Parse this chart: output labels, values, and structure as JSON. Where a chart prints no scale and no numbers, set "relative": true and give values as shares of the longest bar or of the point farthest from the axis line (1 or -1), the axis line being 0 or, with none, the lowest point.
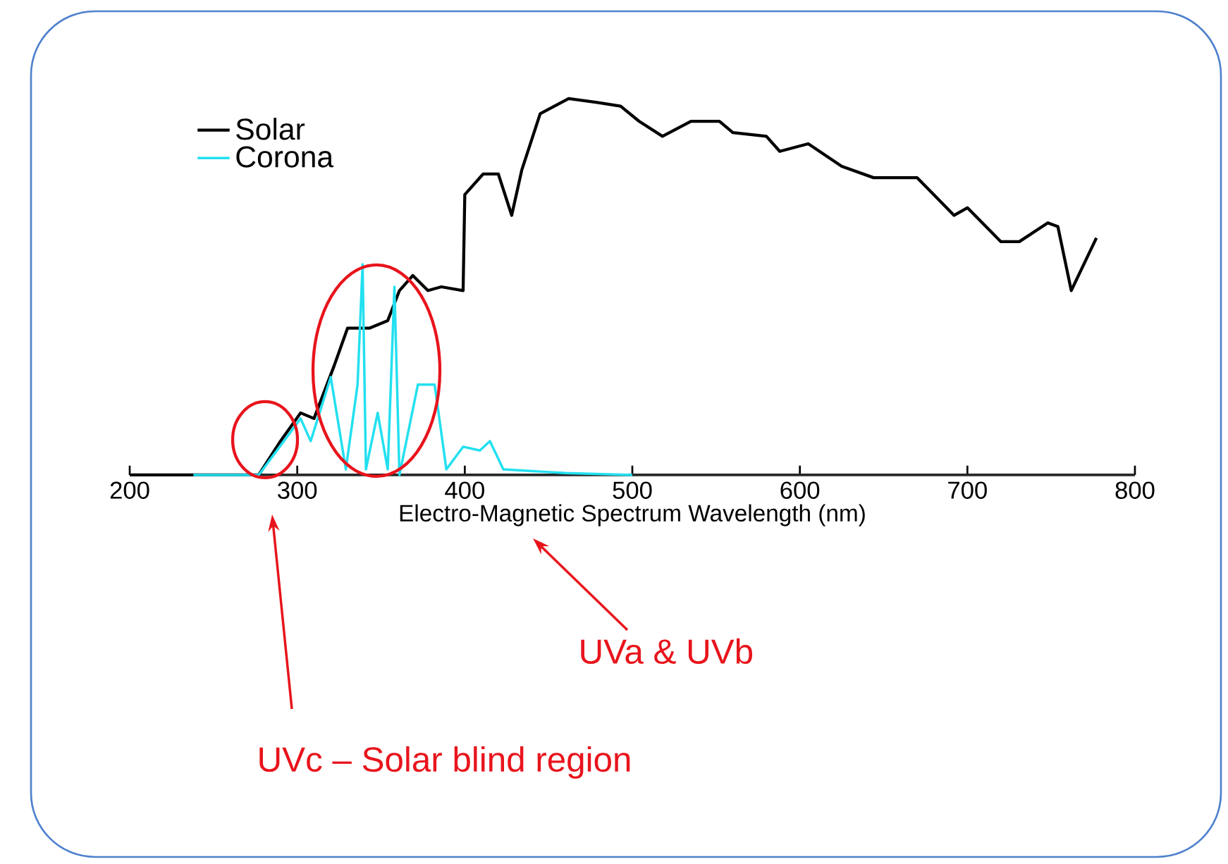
{
  "chart_data": {
    "type": "line",
    "relative": true,
    "xlabel": "Electro-Magnetic Spectrum Wavelength (nm)",
    "xlim": [
      200,
      800
    ],
    "xticks": [
      200,
      300,
      400,
      500,
      600,
      700,
      800
    ],
    "legend": "top left",
    "marker": "none",
    "line_style": "solid",
    "series": [
      {
        "name": "Solar",
        "color": "#000000",
        "x": [
          200,
          270,
          277,
          290,
          302,
          310,
          322,
          330,
          343,
          354,
          361,
          369,
          378,
          386,
          399,
          400,
          411,
          420,
          428,
          434,
          445,
          462,
          479,
          493,
          504,
          518,
          535,
          552,
          560,
          580,
          588,
          605,
          625,
          644,
          670,
          692,
          700,
          720,
          731,
          748,
          754,
          762,
          777
        ],
        "values": [
          0,
          0,
          0,
          0.09,
          0.165,
          0.15,
          0.29,
          0.39,
          0.39,
          0.41,
          0.49,
          0.53,
          0.49,
          0.5,
          0.49,
          0.745,
          0.8,
          0.8,
          0.69,
          0.81,
          0.96,
          1.0,
          0.99,
          0.98,
          0.94,
          0.9,
          0.94,
          0.94,
          0.91,
          0.9,
          0.86,
          0.88,
          0.82,
          0.79,
          0.79,
          0.69,
          0.71,
          0.62,
          0.62,
          0.67,
          0.66,
          0.49,
          0.63
        ]
      },
      {
        "name": "Corona",
        "color": "#22e0f0",
        "x": [
          238,
          277,
          302,
          308,
          320,
          329,
          336,
          339,
          341,
          348,
          354,
          358,
          361,
          372,
          382,
          389,
          399,
          409,
          415,
          423,
          460,
          500
        ],
        "values": [
          0,
          0,
          0.15,
          0.09,
          0.26,
          0.015,
          0.24,
          0.56,
          0.015,
          0.165,
          0.015,
          0.5,
          0,
          0.24,
          0.24,
          0.015,
          0.075,
          0.065,
          0.09,
          0.015,
          0.005,
          0
        ]
      }
    ],
    "annotations": [
      "UVa & UVb",
      "UVc – Solar blind region"
    ]
  }
}
